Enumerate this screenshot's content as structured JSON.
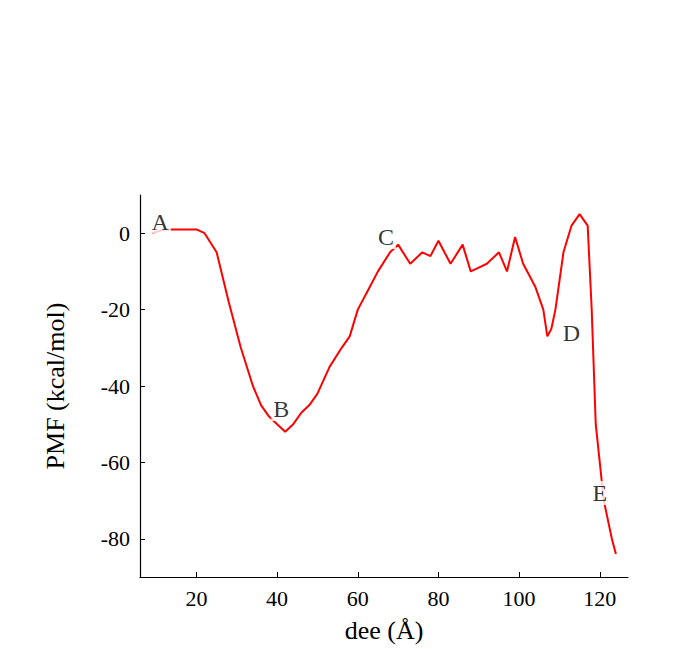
{
  "chart_data": {
    "type": "line",
    "x_label": "dee (Å)",
    "y_label": "PMF (kcal/mol)",
    "x": [
      9,
      12,
      16,
      20,
      22,
      25,
      28,
      31,
      34,
      36,
      38,
      40,
      42,
      44,
      46,
      48,
      50,
      53,
      56,
      58,
      60,
      63,
      65,
      68,
      70,
      73,
      76,
      78,
      80,
      83,
      86,
      88,
      90,
      92,
      95,
      97,
      99,
      101,
      103,
      104,
      106,
      107,
      108,
      109,
      111,
      113,
      115,
      117,
      118,
      119,
      121,
      123,
      124
    ],
    "values": [
      0,
      1,
      1,
      1,
      0,
      -5,
      -18,
      -30,
      -40,
      -45,
      -48,
      -50,
      -52,
      -50,
      -47,
      -45,
      -42,
      -35,
      -30,
      -27,
      -20,
      -14,
      -10,
      -5,
      -3,
      -8,
      -5,
      -6,
      -2,
      -8,
      -3,
      -10,
      -9,
      -8,
      -5,
      -10,
      -1,
      -8,
      -12,
      -14,
      -20,
      -27,
      -25,
      -20,
      -5,
      2,
      5,
      2,
      -20,
      -50,
      -70,
      -80,
      -84
    ],
    "color": "#ff0000",
    "xlim": [
      6,
      127
    ],
    "xticks": [
      20,
      40,
      60,
      80,
      100,
      120
    ],
    "ylim": [
      -90,
      10
    ],
    "yticks": [
      -80,
      -60,
      -40,
      -20,
      0
    ],
    "grid": false,
    "annotations": [
      {
        "text": "A",
        "x": 11,
        "y": 3
      },
      {
        "text": "B",
        "x": 41,
        "y": -46
      },
      {
        "text": "C",
        "x": 67,
        "y": -1
      },
      {
        "text": "D",
        "x": 113,
        "y": -26
      },
      {
        "text": "E",
        "x": 120,
        "y": -68
      }
    ]
  }
}
